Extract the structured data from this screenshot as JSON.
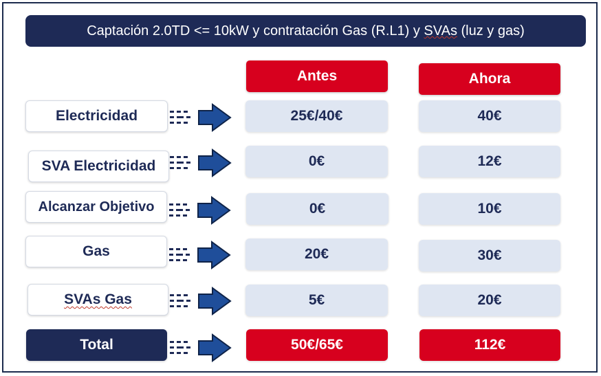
{
  "title": {
    "prefix": "Captación 2.0TD <= 10kW y contratación Gas (R.L1) y ",
    "svas": "SVAs",
    "suffix": " (luz y gas)"
  },
  "columns": {
    "antes": "Antes",
    "ahora": "Ahora"
  },
  "rows": [
    {
      "label": "Electricidad",
      "antes": "25€/40€",
      "ahora": "40€"
    },
    {
      "label": "SVA Electricidad",
      "antes": "0€",
      "ahora": "12€"
    },
    {
      "label": "Alcanzar Objetivo",
      "antes": "0€",
      "ahora": "10€"
    },
    {
      "label": "Gas",
      "antes": "20€",
      "ahora": "30€"
    },
    {
      "label": "SVAs Gas",
      "antes": "5€",
      "ahora": "20€"
    }
  ],
  "total": {
    "label": "Total",
    "antes": "50€/65€",
    "ahora": "112€"
  },
  "colors": {
    "navy": "#1e2a56",
    "red": "#d7001e",
    "cell": "#dfe6f2"
  },
  "icons": {
    "row_arrow": "dashed-right-arrow-icon"
  }
}
